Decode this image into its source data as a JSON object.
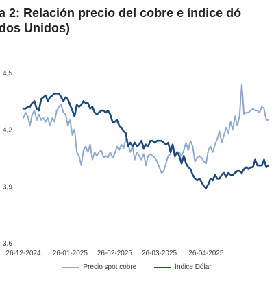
{
  "title": {
    "line1": "a 2: Relación precio del cobre e índice dó",
    "line2": "dos Unidos)"
  },
  "chart_data": {
    "type": "line",
    "ylim": [
      3.6,
      4.5
    ],
    "y_ticks": [
      "3,6",
      "3,9",
      "4,2",
      "4,5"
    ],
    "y_tick_values": [
      3.6,
      3.9,
      4.2,
      4.5
    ],
    "x_tick_labels": [
      "26-12-2024",
      "26-01-2025",
      "26-02-2025",
      "26-03-2025",
      "26-04-2025"
    ],
    "x_tick_index": [
      0,
      21,
      41,
      61,
      82
    ],
    "grid": false,
    "legend_position": "bottom",
    "series": [
      {
        "name": "Precio spot cobre",
        "color": "#8ea9d0",
        "values": [
          4.26,
          4.29,
          4.27,
          4.22,
          4.28,
          4.3,
          4.25,
          4.28,
          4.25,
          4.26,
          4.24,
          4.26,
          4.22,
          4.26,
          4.24,
          4.3,
          4.32,
          4.33,
          4.29,
          4.28,
          4.22,
          4.25,
          4.17,
          4.2,
          4.08,
          4.06,
          4.01,
          4.09,
          4.11,
          4.08,
          4.12,
          4.04,
          4.08,
          4.06,
          4.08,
          4.09,
          4.05,
          4.06,
          4.05,
          4.08,
          4.05,
          4.07,
          4.11,
          4.09,
          4.12,
          4.1,
          4.15,
          4.12,
          4.08,
          4.11,
          4.04,
          4.08,
          4.06,
          4.04,
          4.07,
          4.01,
          4.06,
          4.07,
          4.06,
          4.05,
          4.03,
          4.0,
          3.97,
          3.98,
          4.02,
          4.06,
          4.07,
          4.11,
          4.05,
          4.08,
          4.08,
          4.06,
          4.09,
          4.13,
          4.09,
          4.14,
          4.11,
          4.03,
          4.05,
          4.06,
          4.05,
          4.03,
          4.02,
          4.09,
          4.11,
          4.08,
          4.12,
          4.15,
          4.19,
          4.13,
          4.17,
          4.21,
          4.18,
          4.24,
          4.2,
          4.27,
          4.22,
          4.27,
          4.44,
          4.28,
          4.29,
          4.29,
          4.3,
          4.31,
          4.3,
          4.3,
          4.29,
          4.32,
          4.31,
          4.25,
          4.25
        ]
      },
      {
        "name": "Índice Dólar",
        "color": "#1f497d",
        "values": [
          4.31,
          4.31,
          4.32,
          4.32,
          4.34,
          4.35,
          4.31,
          4.3,
          4.36,
          4.37,
          4.38,
          4.35,
          4.37,
          4.38,
          4.39,
          4.39,
          4.39,
          4.37,
          4.35,
          4.37,
          4.36,
          4.33,
          4.3,
          4.27,
          4.33,
          4.32,
          4.33,
          4.35,
          4.34,
          4.34,
          4.31,
          4.32,
          4.29,
          4.28,
          4.29,
          4.3,
          4.3,
          4.29,
          4.3,
          4.28,
          4.24,
          4.24,
          4.25,
          4.22,
          4.21,
          4.19,
          4.18,
          4.11,
          4.13,
          4.11,
          4.13,
          4.11,
          4.12,
          4.14,
          4.1,
          4.12,
          4.11,
          4.14,
          4.14,
          4.13,
          4.14,
          4.14,
          4.14,
          4.13,
          4.12,
          4.13,
          4.08,
          4.12,
          4.06,
          4.08,
          4.06,
          4.02,
          4.06,
          4.02,
          4.0,
          3.99,
          3.96,
          3.94,
          3.93,
          3.94,
          3.92,
          3.9,
          3.89,
          3.91,
          3.94,
          3.93,
          3.96,
          3.94,
          3.94,
          3.96,
          3.97,
          3.95,
          3.97,
          3.96,
          3.96,
          3.97,
          3.98,
          3.98,
          3.97,
          3.99,
          4.0,
          3.99,
          4.0,
          4.0,
          4.04,
          4.01,
          4.01,
          4.01,
          4.04,
          4.0,
          4.01
        ]
      }
    ]
  }
}
